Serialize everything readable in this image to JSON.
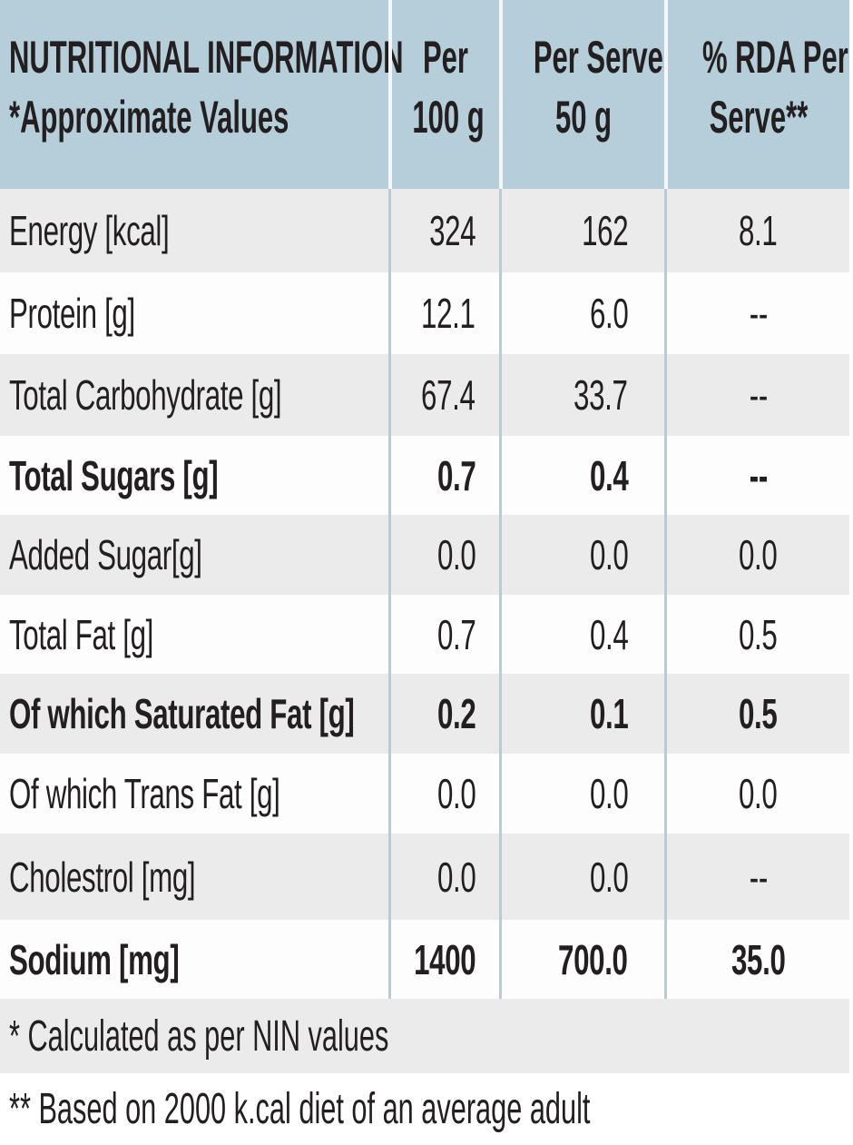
{
  "header": {
    "title_line1": "NUTRITIONAL INFORMATION",
    "title_line2": "*Approximate Values",
    "col1_line1": "Per",
    "col1_line2": "100 g",
    "col2_line1": "Per Serve",
    "col2_line2": "50 g",
    "col3_line1": "% RDA Per",
    "col3_line2": "Serve**"
  },
  "rows": [
    {
      "label": "Energy [kcal]",
      "per100": "324",
      "perServe": "162",
      "rda": "8.1",
      "bold": false
    },
    {
      "label": "Protein [g]",
      "per100": "12.1",
      "perServe": "6.0",
      "rda": "--",
      "bold": false
    },
    {
      "label": "Total Carbohydrate [g]",
      "per100": "67.4",
      "perServe": "33.7",
      "rda": "--",
      "bold": false
    },
    {
      "label": "Total Sugars [g]",
      "per100": "0.7",
      "perServe": "0.4",
      "rda": "--",
      "bold": true
    },
    {
      "label": "Added Sugar[g]",
      "per100": "0.0",
      "perServe": "0.0",
      "rda": "0.0",
      "bold": false
    },
    {
      "label": "Total Fat [g]",
      "per100": "0.7",
      "perServe": "0.4",
      "rda": "0.5",
      "bold": false
    },
    {
      "label": "Of which Saturated Fat [g]",
      "per100": "0.2",
      "perServe": "0.1",
      "rda": "0.5",
      "bold": true
    },
    {
      "label": "Of which Trans Fat [g]",
      "per100": "0.0",
      "perServe": "0.0",
      "rda": "0.0",
      "bold": false
    },
    {
      "label": "Cholestrol [mg]",
      "per100": "0.0",
      "perServe": "0.0",
      "rda": "--",
      "bold": false
    },
    {
      "label": "Sodium [mg]",
      "per100": "1400",
      "perServe": "700.0",
      "rda": "35.0",
      "bold": true
    }
  ],
  "footnotes": {
    "note1": "* Calculated as per NIN values",
    "note2": "** Based on  2000 k.cal diet of an average adult"
  },
  "colors": {
    "header_bg": "#b6cdda",
    "row_shade": "#ebebeb",
    "row_plain": "#fdfdfd",
    "separator": "#b9ccd6",
    "text": "#231f20"
  }
}
